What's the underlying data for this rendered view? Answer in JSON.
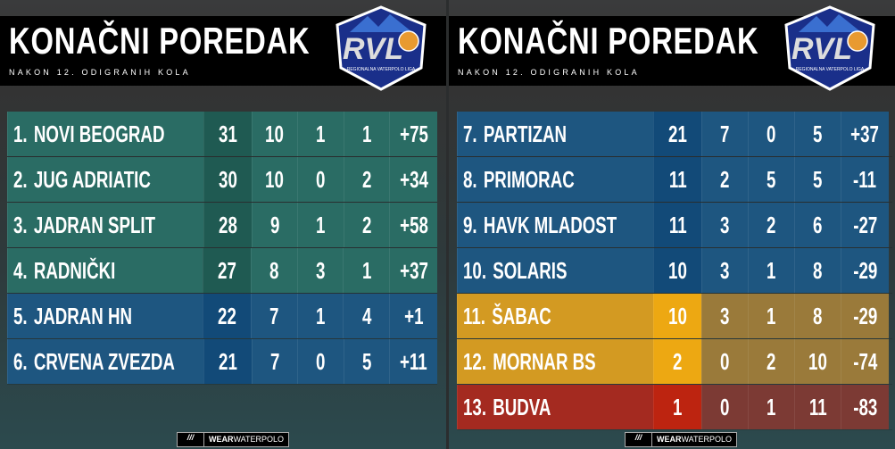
{
  "title": "KONAČNI POREDAK",
  "subtitle": "NAKON 12. ODIGRANIH KOLA",
  "logo": {
    "text": "RVL",
    "tagline": "REGIONALNA VATERPOLO LIGA"
  },
  "footer": {
    "brand_bold": "WEAR",
    "brand_light": "WATERPOLO"
  },
  "colors": {
    "green": "#2a6c64",
    "blue": "#1e5680",
    "yellow": "#d39a22",
    "red": "#a42a20"
  },
  "left_rows": [
    {
      "rank": "1.",
      "team": "NOVI BEOGRAD",
      "pts": "31",
      "w": "10",
      "d": "1",
      "l": "1",
      "gd": "+75",
      "zone": "green"
    },
    {
      "rank": "2.",
      "team": "JUG ADRIATIC",
      "pts": "30",
      "w": "10",
      "d": "0",
      "l": "2",
      "gd": "+34",
      "zone": "green"
    },
    {
      "rank": "3.",
      "team": "JADRAN SPLIT",
      "pts": "28",
      "w": "9",
      "d": "1",
      "l": "2",
      "gd": "+58",
      "zone": "green"
    },
    {
      "rank": "4.",
      "team": "RADNIČKI",
      "pts": "27",
      "w": "8",
      "d": "3",
      "l": "1",
      "gd": "+37",
      "zone": "green"
    },
    {
      "rank": "5.",
      "team": "JADRAN HN",
      "pts": "22",
      "w": "7",
      "d": "1",
      "l": "4",
      "gd": "+1",
      "zone": "blue"
    },
    {
      "rank": "6.",
      "team": "CRVENA ZVEZDA",
      "pts": "21",
      "w": "7",
      "d": "0",
      "l": "5",
      "gd": "+11",
      "zone": "blue"
    }
  ],
  "right_rows": [
    {
      "rank": "7.",
      "team": "PARTIZAN",
      "pts": "21",
      "w": "7",
      "d": "0",
      "l": "5",
      "gd": "+37",
      "zone": "blue"
    },
    {
      "rank": "8.",
      "team": "PRIMORAC",
      "pts": "11",
      "w": "2",
      "d": "5",
      "l": "5",
      "gd": "-11",
      "zone": "blue"
    },
    {
      "rank": "9.",
      "team": "HAVK MLADOST",
      "pts": "11",
      "w": "3",
      "d": "2",
      "l": "6",
      "gd": "-27",
      "zone": "blue"
    },
    {
      "rank": "10.",
      "team": "SOLARIS",
      "pts": "10",
      "w": "3",
      "d": "1",
      "l": "8",
      "gd": "-29",
      "zone": "blue"
    },
    {
      "rank": "11.",
      "team": "ŠABAC",
      "pts": "10",
      "w": "3",
      "d": "1",
      "l": "8",
      "gd": "-29",
      "zone": "yellow"
    },
    {
      "rank": "12.",
      "team": "MORNAR BS",
      "pts": "2",
      "w": "0",
      "d": "2",
      "l": "10",
      "gd": "-74",
      "zone": "yellow"
    },
    {
      "rank": "13.",
      "team": "BUDVA",
      "pts": "1",
      "w": "0",
      "d": "1",
      "l": "11",
      "gd": "-83",
      "zone": "red"
    }
  ]
}
